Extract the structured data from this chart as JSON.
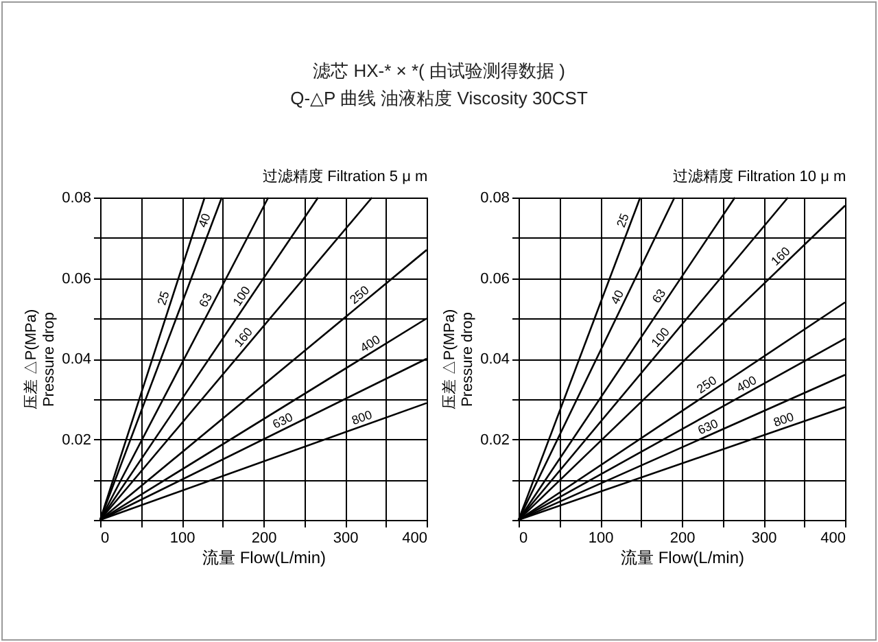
{
  "chart_data": [
    {
      "type": "line",
      "title": "过滤精度 Filtration 5 μ m",
      "annotations": [
        "滤芯 HX-* × *( 由试验测得数据 )",
        "Q-△P 曲线 油液粘度 Viscosity 30CST"
      ],
      "xlabel": "流量 Flow(L/min)",
      "ylabel": "压差 △P(MPa)\nPressure drop",
      "xlim": [
        0,
        400
      ],
      "ylim": [
        0,
        0.08
      ],
      "xticks": [
        0,
        {
          "value": 50,
          "label": null
        },
        100,
        {
          "value": 150,
          "label": null
        },
        200,
        {
          "value": 250,
          "label": null
        },
        300,
        {
          "value": 350,
          "label": null
        },
        400
      ],
      "yticks": [
        {
          "value": 0,
          "label": null
        },
        {
          "value": 0.01,
          "label": null
        },
        0.02,
        {
          "value": 0.03,
          "label": null
        },
        0.04,
        {
          "value": 0.05,
          "label": null
        },
        0.06,
        {
          "value": 0.07,
          "label": null
        },
        0.08
      ],
      "grid": true,
      "series": [
        {
          "name": "25",
          "color": "#000000",
          "x": [
            0,
            128
          ],
          "values": [
            0,
            0.08
          ]
        },
        {
          "name": "40",
          "color": "#000000",
          "x": [
            0,
            149
          ],
          "values": [
            0,
            0.08
          ]
        },
        {
          "name": "63",
          "color": "#000000",
          "x": [
            0,
            206
          ],
          "values": [
            0,
            0.08
          ]
        },
        {
          "name": "100",
          "color": "#000000",
          "x": [
            0,
            267
          ],
          "values": [
            0,
            0.08
          ]
        },
        {
          "name": "160",
          "color": "#000000",
          "x": [
            0,
            333
          ],
          "values": [
            0,
            0.08
          ]
        },
        {
          "name": "250",
          "color": "#000000",
          "x": [
            0,
            400
          ],
          "values": [
            0,
            0.067
          ]
        },
        {
          "name": "400",
          "color": "#000000",
          "x": [
            0,
            400
          ],
          "values": [
            0,
            0.05
          ]
        },
        {
          "name": "630",
          "color": "#000000",
          "x": [
            0,
            400
          ],
          "values": [
            0,
            0.04
          ]
        },
        {
          "name": "800",
          "color": "#000000",
          "x": [
            0,
            400
          ],
          "values": [
            0,
            0.029
          ]
        }
      ]
    },
    {
      "type": "line",
      "title": "过滤精度 Filtration 10 μ m",
      "xlabel": "流量 Flow(L/min)",
      "ylabel": "压差 △P(MPa)\nPressure drop",
      "xlim": [
        0,
        400
      ],
      "ylim": [
        0,
        0.08
      ],
      "xticks": [
        0,
        {
          "value": 50,
          "label": null
        },
        100,
        {
          "value": 150,
          "label": null
        },
        200,
        {
          "value": 250,
          "label": null
        },
        300,
        {
          "value": 350,
          "label": null
        },
        400
      ],
      "yticks": [
        {
          "value": 0,
          "label": null
        },
        {
          "value": 0.01,
          "label": null
        },
        0.02,
        {
          "value": 0.03,
          "label": null
        },
        0.04,
        {
          "value": 0.05,
          "label": null
        },
        0.06,
        {
          "value": 0.07,
          "label": null
        },
        0.08
      ],
      "grid": true,
      "series": [
        {
          "name": "25",
          "color": "#000000",
          "x": [
            0,
            149
          ],
          "values": [
            0,
            0.08
          ]
        },
        {
          "name": "40",
          "color": "#000000",
          "x": [
            0,
            191
          ],
          "values": [
            0,
            0.08
          ]
        },
        {
          "name": "63",
          "color": "#000000",
          "x": [
            0,
            265
          ],
          "values": [
            0,
            0.08
          ]
        },
        {
          "name": "100",
          "color": "#000000",
          "x": [
            0,
            330
          ],
          "values": [
            0,
            0.08
          ]
        },
        {
          "name": "160",
          "color": "#000000",
          "x": [
            0,
            400
          ],
          "values": [
            0,
            0.078
          ]
        },
        {
          "name": "250",
          "color": "#000000",
          "x": [
            0,
            400
          ],
          "values": [
            0,
            0.054
          ]
        },
        {
          "name": "400",
          "color": "#000000",
          "x": [
            0,
            400
          ],
          "values": [
            0,
            0.045
          ]
        },
        {
          "name": "630",
          "color": "#000000",
          "x": [
            0,
            400
          ],
          "values": [
            0,
            0.036
          ]
        },
        {
          "name": "800",
          "color": "#000000",
          "x": [
            0,
            400
          ],
          "values": [
            0,
            0.028
          ]
        }
      ]
    }
  ]
}
